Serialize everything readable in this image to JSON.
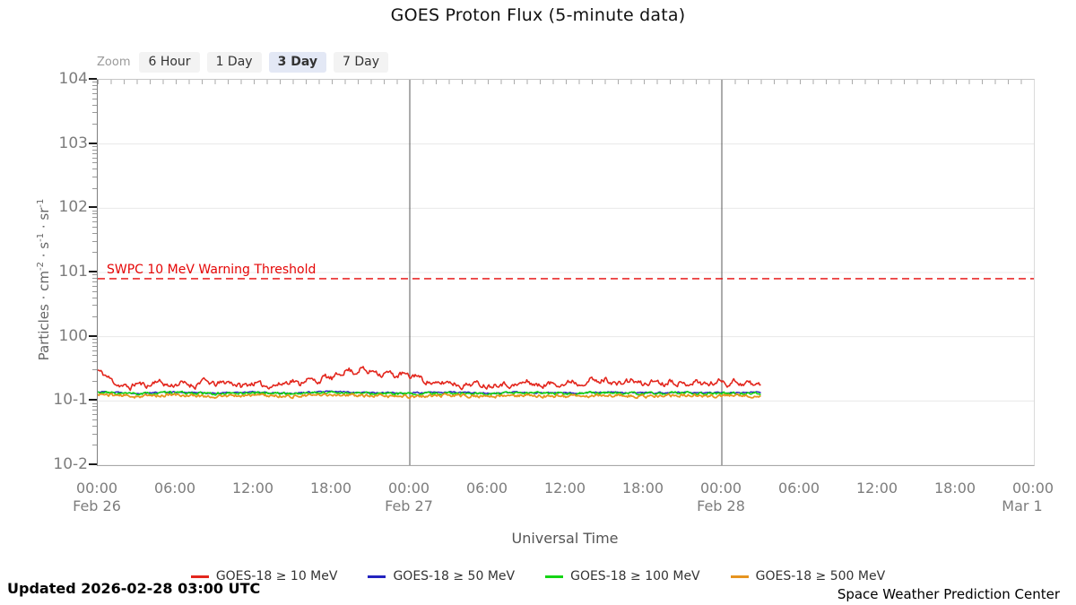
{
  "title": "GOES Proton Flux (5-minute data)",
  "zoom_bar": {
    "label": "Zoom",
    "options": [
      {
        "label": "6 Hour",
        "selected": false
      },
      {
        "label": "1 Day",
        "selected": false
      },
      {
        "label": "3 Day",
        "selected": true
      },
      {
        "label": "7 Day",
        "selected": false
      }
    ]
  },
  "y_axis": {
    "title_parts": [
      {
        "t": "Particles · cm"
      },
      {
        "sup": "-2"
      },
      {
        "t": " · s"
      },
      {
        "sup": "-1"
      },
      {
        "t": " · sr"
      },
      {
        "sup": "-1"
      }
    ],
    "ticks": [
      {
        "label": "104",
        "exp": 4
      },
      {
        "label": "103",
        "exp": 3
      },
      {
        "label": "102",
        "exp": 2
      },
      {
        "label": "101",
        "exp": 1
      },
      {
        "label": "100",
        "exp": 0
      },
      {
        "label": "10-1",
        "exp": -1
      },
      {
        "label": "10-2",
        "exp": -2
      }
    ]
  },
  "x_axis": {
    "label": "Universal Time",
    "ticks": [
      {
        "hour": 0,
        "time": "00:00",
        "date": "Feb 26"
      },
      {
        "hour": 6,
        "time": "06:00"
      },
      {
        "hour": 12,
        "time": "12:00"
      },
      {
        "hour": 18,
        "time": "18:00"
      },
      {
        "hour": 24,
        "time": "00:00",
        "date": "Feb 27"
      },
      {
        "hour": 30,
        "time": "06:00"
      },
      {
        "hour": 36,
        "time": "12:00"
      },
      {
        "hour": 42,
        "time": "18:00"
      },
      {
        "hour": 48,
        "time": "00:00",
        "date": "Feb 28"
      },
      {
        "hour": 54,
        "time": "06:00"
      },
      {
        "hour": 60,
        "time": "12:00"
      },
      {
        "hour": 66,
        "time": "18:00"
      },
      {
        "hour": 72,
        "time": "00:00",
        "date": "Mar 1"
      }
    ]
  },
  "threshold": {
    "label": "SWPC 10 MeV Warning Threshold",
    "value": 8,
    "color": "#e50505"
  },
  "footer": {
    "updated": "Updated 2026-02-28 03:00 UTC",
    "source": "Space Weather Prediction Center"
  },
  "chart_data": {
    "type": "line",
    "title": "GOES Proton Flux (5-minute data)",
    "xlabel": "Universal Time",
    "ylabel": "Particles · cm^-2 · s^-1 · sr^-1",
    "x_unit": "hours since 2026-02-26 00:00 UTC",
    "xlim": [
      0,
      72
    ],
    "x_date_labels": [
      "Feb 26",
      "Feb 27",
      "Feb 28",
      "Mar 1"
    ],
    "ylim": [
      0.01,
      10000
    ],
    "y_scale": "log",
    "grid": "horizontal decade gridlines; dark vertical lines at day boundaries",
    "legend_position": "bottom",
    "sample_interval_minutes": 5,
    "data_end_hour": 51,
    "day_boundaries_hours": [
      24,
      48
    ],
    "threshold_line": {
      "label": "SWPC 10 MeV Warning Threshold",
      "value": 8,
      "style": "dashed red"
    },
    "series": [
      {
        "name": "GOES-18 ≥ 10 MeV",
        "color": "#e3261d",
        "noise": 0.14,
        "seed": 11,
        "width": 1.6,
        "anchors": [
          [
            0,
            0.3
          ],
          [
            0.7,
            0.24
          ],
          [
            1.5,
            0.18
          ],
          [
            2.5,
            0.16
          ],
          [
            3,
            0.19
          ],
          [
            4,
            0.17
          ],
          [
            4.5,
            0.21
          ],
          [
            5.5,
            0.17
          ],
          [
            6.5,
            0.19
          ],
          [
            7.5,
            0.17
          ],
          [
            8,
            0.21
          ],
          [
            9,
            0.18
          ],
          [
            10,
            0.2
          ],
          [
            11,
            0.17
          ],
          [
            12,
            0.19
          ],
          [
            13,
            0.17
          ],
          [
            14,
            0.18
          ],
          [
            15,
            0.21
          ],
          [
            15.5,
            0.18
          ],
          [
            16,
            0.22
          ],
          [
            17,
            0.2
          ],
          [
            17.5,
            0.24
          ],
          [
            18,
            0.22
          ],
          [
            18.7,
            0.27
          ],
          [
            19.3,
            0.31
          ],
          [
            19.8,
            0.27
          ],
          [
            20.3,
            0.33
          ],
          [
            20.8,
            0.27
          ],
          [
            21.3,
            0.31
          ],
          [
            21.8,
            0.25
          ],
          [
            22.3,
            0.28
          ],
          [
            23,
            0.24
          ],
          [
            23.5,
            0.27
          ],
          [
            24,
            0.23
          ],
          [
            24.5,
            0.26
          ],
          [
            25,
            0.21
          ],
          [
            26,
            0.18
          ],
          [
            27,
            0.2
          ],
          [
            28,
            0.17
          ],
          [
            29,
            0.19
          ],
          [
            30,
            0.17
          ],
          [
            31,
            0.19
          ],
          [
            32,
            0.17
          ],
          [
            33,
            0.2
          ],
          [
            34,
            0.17
          ],
          [
            35,
            0.19
          ],
          [
            36,
            0.18
          ],
          [
            36.5,
            0.21
          ],
          [
            37,
            0.18
          ],
          [
            38,
            0.22
          ],
          [
            38.5,
            0.19
          ],
          [
            39,
            0.22
          ],
          [
            40,
            0.18
          ],
          [
            41,
            0.21
          ],
          [
            42,
            0.18
          ],
          [
            43,
            0.21
          ],
          [
            43.5,
            0.18
          ],
          [
            44,
            0.21
          ],
          [
            45,
            0.18
          ],
          [
            46,
            0.2
          ],
          [
            47,
            0.18
          ],
          [
            48,
            0.21
          ],
          [
            48.5,
            0.18
          ],
          [
            49,
            0.21
          ],
          [
            49.5,
            0.18
          ],
          [
            50,
            0.2
          ],
          [
            50.5,
            0.17
          ],
          [
            51,
            0.19
          ]
        ]
      },
      {
        "name": "GOES-18 ≥ 50 MeV",
        "color": "#2323bf",
        "noise": 0.04,
        "seed": 22,
        "width": 1.4,
        "anchors": [
          [
            0,
            0.14
          ],
          [
            3,
            0.133
          ],
          [
            6,
            0.138
          ],
          [
            9,
            0.132
          ],
          [
            12,
            0.137
          ],
          [
            15,
            0.133
          ],
          [
            18,
            0.14
          ],
          [
            21,
            0.135
          ],
          [
            24,
            0.133
          ],
          [
            27,
            0.137
          ],
          [
            30,
            0.132
          ],
          [
            33,
            0.136
          ],
          [
            36,
            0.133
          ],
          [
            39,
            0.137
          ],
          [
            42,
            0.133
          ],
          [
            45,
            0.136
          ],
          [
            48,
            0.134
          ],
          [
            51,
            0.136
          ]
        ]
      },
      {
        "name": "GOES-18 ≥ 100 MeV",
        "color": "#14d414",
        "noise": 0.07,
        "seed": 33,
        "width": 1.6,
        "anchors": [
          [
            0,
            0.135
          ],
          [
            3,
            0.128
          ],
          [
            6,
            0.134
          ],
          [
            9,
            0.129
          ],
          [
            12,
            0.134
          ],
          [
            15,
            0.13
          ],
          [
            18,
            0.136
          ],
          [
            21,
            0.13
          ],
          [
            24,
            0.128
          ],
          [
            27,
            0.133
          ],
          [
            30,
            0.128
          ],
          [
            33,
            0.133
          ],
          [
            36,
            0.129
          ],
          [
            39,
            0.134
          ],
          [
            42,
            0.129
          ],
          [
            45,
            0.133
          ],
          [
            48,
            0.131
          ],
          [
            51,
            0.132
          ]
        ]
      },
      {
        "name": "GOES-18 ≥ 500 MeV",
        "color": "#e6941f",
        "noise": 0.08,
        "seed": 44,
        "width": 1.8,
        "anchors": [
          [
            0,
            0.127
          ],
          [
            3,
            0.118
          ],
          [
            6,
            0.124
          ],
          [
            9,
            0.117
          ],
          [
            12,
            0.123
          ],
          [
            15,
            0.118
          ],
          [
            18,
            0.126
          ],
          [
            21,
            0.119
          ],
          [
            24,
            0.117
          ],
          [
            27,
            0.122
          ],
          [
            30,
            0.117
          ],
          [
            33,
            0.122
          ],
          [
            36,
            0.118
          ],
          [
            39,
            0.123
          ],
          [
            42,
            0.118
          ],
          [
            45,
            0.122
          ],
          [
            48,
            0.12
          ],
          [
            51,
            0.121
          ]
        ]
      }
    ]
  }
}
